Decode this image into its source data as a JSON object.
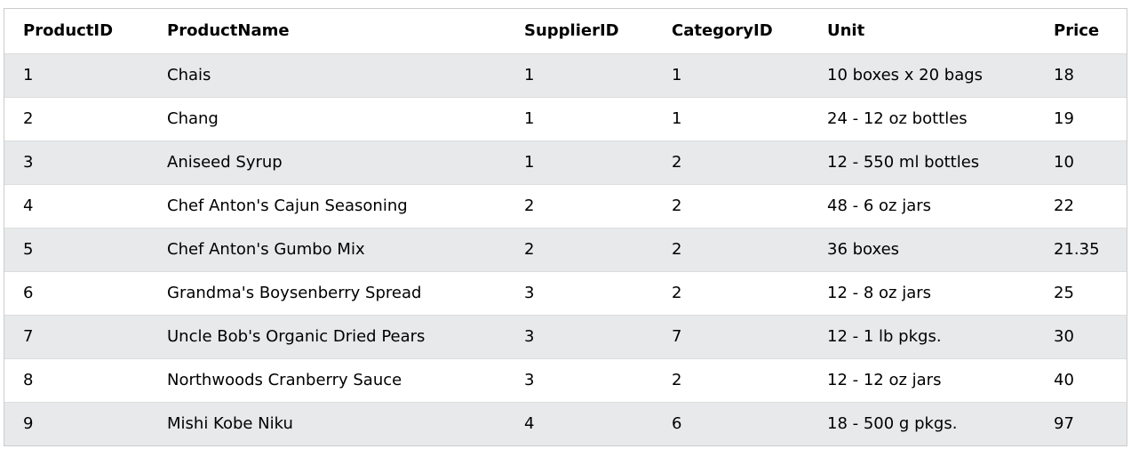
{
  "table": {
    "headers": [
      "ProductID",
      "ProductName",
      "SupplierID",
      "CategoryID",
      "Unit",
      "Price"
    ],
    "rows": [
      [
        "1",
        "Chais",
        "1",
        "1",
        "10 boxes x 20 bags",
        "18"
      ],
      [
        "2",
        "Chang",
        "1",
        "1",
        "24 - 12 oz bottles",
        "19"
      ],
      [
        "3",
        "Aniseed Syrup",
        "1",
        "2",
        "12 - 550 ml bottles",
        "10"
      ],
      [
        "4",
        "Chef Anton's Cajun Seasoning",
        "2",
        "2",
        "48 - 6 oz jars",
        "22"
      ],
      [
        "5",
        "Chef Anton's Gumbo Mix",
        "2",
        "2",
        "36 boxes",
        "21.35"
      ],
      [
        "6",
        "Grandma's Boysenberry Spread",
        "3",
        "2",
        "12 - 8 oz jars",
        "25"
      ],
      [
        "7",
        "Uncle Bob's Organic Dried Pears",
        "3",
        "7",
        "12 - 1 lb pkgs.",
        "30"
      ],
      [
        "8",
        "Northwoods Cranberry Sauce",
        "3",
        "2",
        "12 - 12 oz jars",
        "40"
      ],
      [
        "9",
        "Mishi Kobe Niku",
        "4",
        "6",
        "18 - 500 g pkgs.",
        "97"
      ]
    ]
  },
  "colors": {
    "stripe": "#e7e9eb",
    "border": "#cccccc",
    "text": "#000000"
  }
}
